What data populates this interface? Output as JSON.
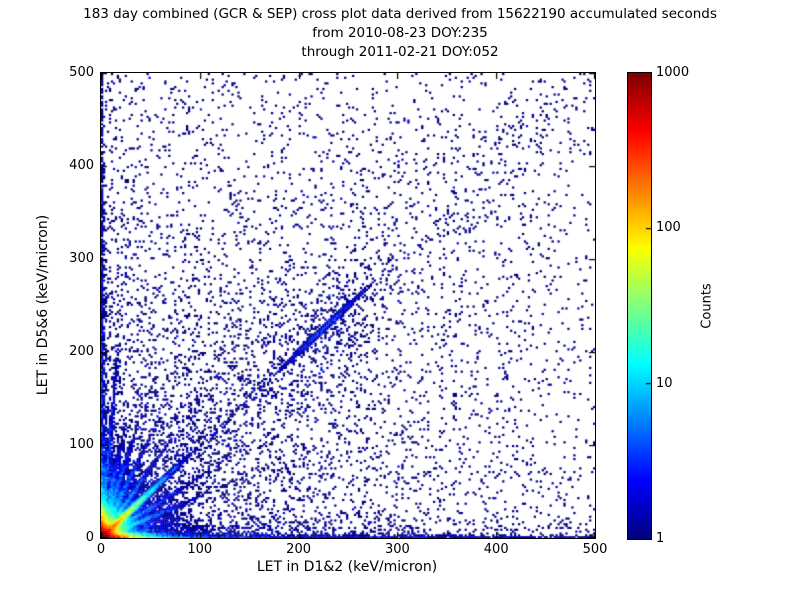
{
  "chart_data": {
    "type": "heatmap",
    "title": {
      "line1": "183 day combined (GCR & SEP) cross plot data derived from 15622190 accumulated seconds",
      "line2": "from 2010-08-23 DOY:235",
      "line3": "through 2011-02-21 DOY:052"
    },
    "xlabel": "LET in D1&2 (keV/micron)",
    "ylabel": "LET in D5&6 (keV/micron)",
    "xlim": [
      0,
      500
    ],
    "ylim": [
      0,
      500
    ],
    "xticks": [
      0,
      100,
      200,
      300,
      400,
      500
    ],
    "yticks": [
      0,
      100,
      200,
      300,
      400,
      500
    ],
    "grid": false,
    "background": "#ffffff",
    "colormap": "jet",
    "bin_size_kev_per_micron": 2,
    "colorbar": {
      "label": "Counts",
      "scale": "log",
      "vmin": 1,
      "vmax": 1000,
      "ticks": [
        1,
        10,
        100,
        1000
      ]
    },
    "features": [
      "very hot red/orange core at origin (0-10 keV/micron both axes)",
      "red-to-blue decaying band hugging the x-axis out to 500",
      "red-to-blue decaying band hugging the y-axis out to 500",
      "bright cyan/green 45-degree coincidence ray from origin fading by ~100",
      "fan of faint blue rays at several slopes from the origin",
      "sparse navy single-count scatter across entire plane, densest near origin",
      "diagonal single-count clump near (225,225)",
      "diffuse haze of points around (290,370)"
    ],
    "density_components": [
      {
        "type": "corner_exp",
        "amp": 1400,
        "sx": 7,
        "sy": 7,
        "extent": 60
      },
      {
        "type": "edge_band",
        "axis": "x",
        "amp": 800,
        "scale": 13,
        "floor": 2.6,
        "floor_scale": 420,
        "thickness": 6,
        "falloff": 2.2
      },
      {
        "type": "edge_band",
        "axis": "y",
        "amp": 520,
        "scale": 9.5,
        "floor": 2.3,
        "floor_scale": 430,
        "thickness": 6,
        "falloff": 2.2
      },
      {
        "type": "ray",
        "slope": 1.0,
        "amp": 200,
        "scale": 21,
        "width": 2.6,
        "length": 510,
        "floor": 0.5,
        "floor_scale": 280,
        "clumps": [
          {
            "center": 320,
            "amp": 1.6,
            "sigma": 40
          }
        ]
      },
      {
        "type": "ray",
        "slope": 0.45,
        "amp": 11,
        "scale": 34,
        "width": 2.2,
        "length": 230,
        "floor": 0.35,
        "floor_scale": 220,
        "clumps": []
      },
      {
        "type": "ray",
        "slope": 0.65,
        "amp": 9,
        "scale": 36,
        "width": 2.2,
        "length": 210,
        "floor": 0.3,
        "floor_scale": 220,
        "clumps": []
      },
      {
        "type": "ray",
        "slope": 1.5,
        "amp": 11,
        "scale": 36,
        "width": 2.2,
        "length": 220,
        "floor": 0.35,
        "floor_scale": 230,
        "clumps": []
      },
      {
        "type": "ray",
        "slope": 2.2,
        "amp": 9,
        "scale": 38,
        "width": 2.2,
        "length": 210,
        "floor": 0.3,
        "floor_scale": 230,
        "clumps": []
      },
      {
        "type": "ray",
        "slope": 3.3,
        "amp": 8,
        "scale": 40,
        "width": 2.2,
        "length": 200,
        "floor": 0.3,
        "floor_scale": 230,
        "clumps": []
      },
      {
        "type": "ray",
        "slope": 5.0,
        "amp": 7,
        "scale": 40,
        "width": 2.3,
        "length": 180,
        "floor": 0.3,
        "floor_scale": 220,
        "clumps": []
      },
      {
        "type": "ray",
        "slope": 12.0,
        "amp": 5,
        "scale": 70,
        "width": 2.0,
        "length": 440,
        "floor": 0.4,
        "floor_scale": 320,
        "clumps": []
      },
      {
        "type": "cloud",
        "amp": 8,
        "sx": 40,
        "sy": 40,
        "extent": 170
      },
      {
        "type": "clump",
        "cx": 228,
        "cy": 228,
        "sx": 26,
        "sy": 26,
        "n": 230
      },
      {
        "type": "clump",
        "cx": 158,
        "cy": 150,
        "sx": 45,
        "sy": 45,
        "n": 150
      },
      {
        "type": "clump",
        "cx": 85,
        "cy": 85,
        "sx": 28,
        "sy": 28,
        "n": 150
      },
      {
        "type": "clump",
        "cx": 290,
        "cy": 370,
        "sx": 55,
        "sy": 85,
        "n": 120
      },
      {
        "type": "band_scatter",
        "length": 505,
        "width": 26,
        "n": 550
      },
      {
        "type": "edge_scatter",
        "axis": "x",
        "n": 850,
        "along_scale": 270,
        "off_scale": 11
      },
      {
        "type": "edge_scatter",
        "axis": "y",
        "n": 480,
        "along_scale": 230,
        "off_scale": 9
      },
      {
        "type": "scatter_radial",
        "n": 5000,
        "scale": 175,
        "floor": 0.075
      }
    ]
  }
}
